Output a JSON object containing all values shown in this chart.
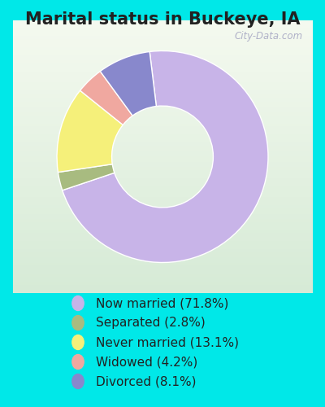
{
  "title": "Marital status in Buckeye, IA",
  "slices": [
    71.8,
    2.8,
    13.1,
    4.2,
    8.1
  ],
  "labels": [
    "Now married (71.8%)",
    "Separated (2.8%)",
    "Never married (13.1%)",
    "Widowed (4.2%)",
    "Divorced (8.1%)"
  ],
  "colors": [
    "#c8b4e8",
    "#a8bb80",
    "#f5f07a",
    "#f0a8a0",
    "#8888cc"
  ],
  "bg_outer": "#00e8e8",
  "bg_inner_top": "#e8f5e8",
  "bg_inner_bottom": "#c8e8d8",
  "title_fontsize": 15,
  "legend_fontsize": 11,
  "watermark": "City-Data.com",
  "startangle": 97,
  "donut_width": 0.52
}
